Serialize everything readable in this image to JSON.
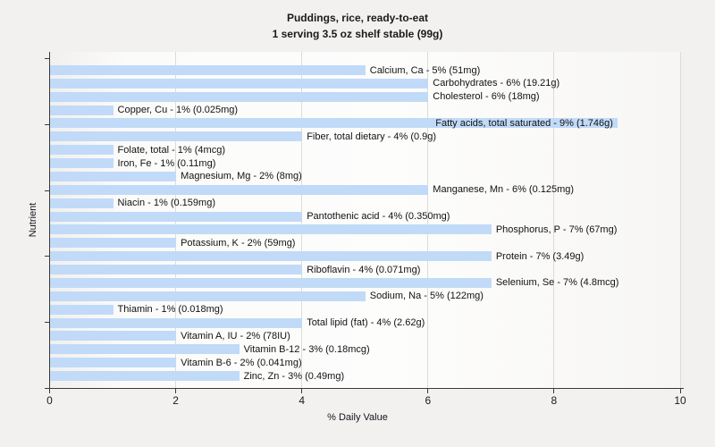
{
  "page": {
    "background_color": "#f2f1ef"
  },
  "chart_data": {
    "type": "bar",
    "orientation": "horizontal",
    "title": "Puddings, rice, ready-to-eat",
    "subtitle": "1 serving 3.5 oz shelf stable (99g)",
    "xlabel": "% Daily Value",
    "ylabel": "Nutrient",
    "xlim": [
      0,
      10
    ],
    "xticks": [
      0,
      2,
      4,
      6,
      8,
      10
    ],
    "grid": "vertical-only",
    "legend": "none",
    "bar_color": "#c1daf8",
    "items": [
      {
        "name": "Calcium, Ca",
        "percent_dv": 5,
        "amount": "51mg",
        "label": "Calcium, Ca - 5% (51mg)"
      },
      {
        "name": "Carbohydrates",
        "percent_dv": 6,
        "amount": "19.21g",
        "label": "Carbohydrates - 6% (19.21g)"
      },
      {
        "name": "Cholesterol",
        "percent_dv": 6,
        "amount": "18mg",
        "label": "Cholesterol - 6% (18mg)"
      },
      {
        "name": "Copper, Cu",
        "percent_dv": 1,
        "amount": "0.025mg",
        "label": "Copper, Cu - 1% (0.025mg)"
      },
      {
        "name": "Fatty acids, total saturated",
        "percent_dv": 9,
        "amount": "1.746g",
        "label": "Fatty acids, total saturated - 9% (1.746g)"
      },
      {
        "name": "Fiber, total dietary",
        "percent_dv": 4,
        "amount": "0.9g",
        "label": "Fiber, total dietary - 4% (0.9g)"
      },
      {
        "name": "Folate, total",
        "percent_dv": 1,
        "amount": "4mcg",
        "label": "Folate, total - 1% (4mcg)"
      },
      {
        "name": "Iron, Fe",
        "percent_dv": 1,
        "amount": "0.11mg",
        "label": "Iron, Fe - 1% (0.11mg)"
      },
      {
        "name": "Magnesium, Mg",
        "percent_dv": 2,
        "amount": "8mg",
        "label": "Magnesium, Mg - 2% (8mg)"
      },
      {
        "name": "Manganese, Mn",
        "percent_dv": 6,
        "amount": "0.125mg",
        "label": "Manganese, Mn - 6% (0.125mg)"
      },
      {
        "name": "Niacin",
        "percent_dv": 1,
        "amount": "0.159mg",
        "label": "Niacin - 1% (0.159mg)"
      },
      {
        "name": "Pantothenic acid",
        "percent_dv": 4,
        "amount": "0.350mg",
        "label": "Pantothenic acid - 4% (0.350mg)"
      },
      {
        "name": "Phosphorus, P",
        "percent_dv": 7,
        "amount": "67mg",
        "label": "Phosphorus, P - 7% (67mg)"
      },
      {
        "name": "Potassium, K",
        "percent_dv": 2,
        "amount": "59mg",
        "label": "Potassium, K - 2% (59mg)"
      },
      {
        "name": "Protein",
        "percent_dv": 7,
        "amount": "3.49g",
        "label": "Protein - 7% (3.49g)"
      },
      {
        "name": "Riboflavin",
        "percent_dv": 4,
        "amount": "0.071mg",
        "label": "Riboflavin - 4% (0.071mg)"
      },
      {
        "name": "Selenium, Se",
        "percent_dv": 7,
        "amount": "4.8mcg",
        "label": "Selenium, Se - 7% (4.8mcg)"
      },
      {
        "name": "Sodium, Na",
        "percent_dv": 5,
        "amount": "122mg",
        "label": "Sodium, Na - 5% (122mg)"
      },
      {
        "name": "Thiamin",
        "percent_dv": 1,
        "amount": "0.018mg",
        "label": "Thiamin - 1% (0.018mg)"
      },
      {
        "name": "Total lipid (fat)",
        "percent_dv": 4,
        "amount": "2.62g",
        "label": "Total lipid (fat) - 4% (2.62g)"
      },
      {
        "name": "Vitamin A, IU",
        "percent_dv": 2,
        "amount": "78IU",
        "label": "Vitamin A, IU - 2% (78IU)"
      },
      {
        "name": "Vitamin B-12",
        "percent_dv": 3,
        "amount": "0.18mcg",
        "label": "Vitamin B-12 - 3% (0.18mcg)"
      },
      {
        "name": "Vitamin B-6",
        "percent_dv": 2,
        "amount": "0.041mg",
        "label": "Vitamin B-6 - 2% (0.041mg)"
      },
      {
        "name": "Zinc, Zn",
        "percent_dv": 3,
        "amount": "0.49mg",
        "label": "Zinc, Zn - 3% (0.49mg)"
      }
    ]
  }
}
